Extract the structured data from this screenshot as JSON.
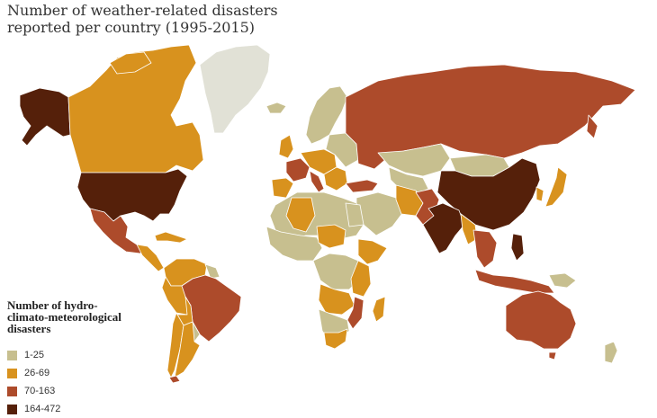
{
  "title": {
    "line1": "Number of weather-related disasters",
    "line2": "reported per country (1995-2015)"
  },
  "legend": {
    "title_lines": [
      "Number of hydro-",
      "climato-meteorological",
      "disasters"
    ],
    "items": [
      {
        "label": "1-25",
        "color": "#c7bf8f"
      },
      {
        "label": "26-69",
        "color": "#d8921e"
      },
      {
        "label": "70-163",
        "color": "#ad4b2b"
      },
      {
        "label": "164-472",
        "color": "#55200a"
      }
    ]
  },
  "colors": {
    "no_data": "#e1e1d6",
    "border": "#ffffff",
    "background": "#ffffff"
  }
}
